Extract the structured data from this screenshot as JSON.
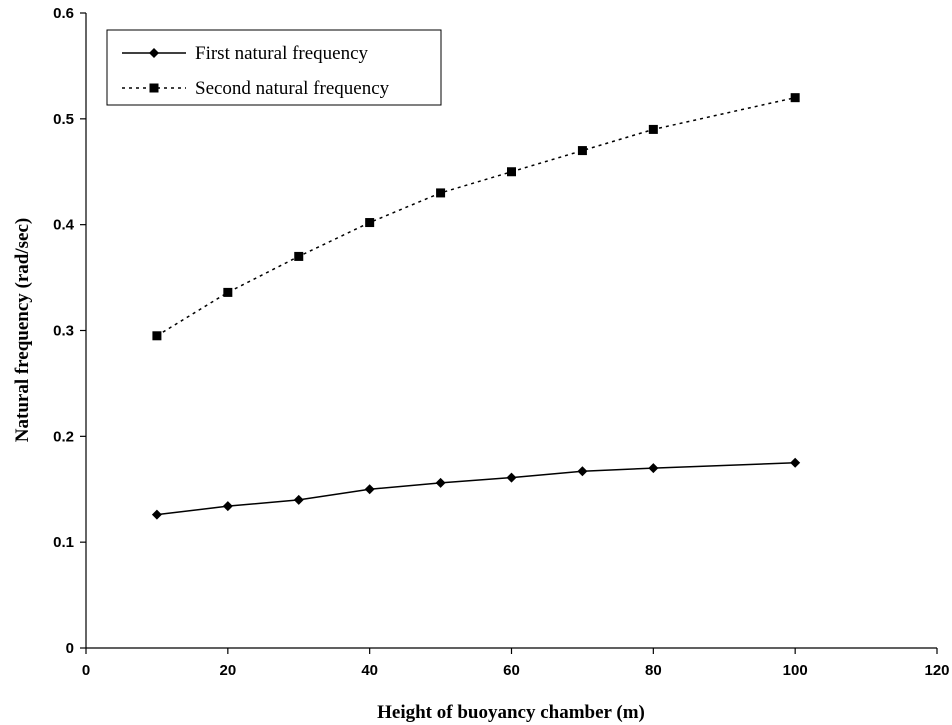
{
  "chart_data": {
    "type": "line",
    "title": "",
    "xlabel": "Height of buoyancy chamber (m)",
    "ylabel": "Natural frequency (rad/sec)",
    "xlim": [
      0,
      120
    ],
    "ylim": [
      0,
      0.6
    ],
    "xticks": [
      "0",
      "20",
      "40",
      "60",
      "80",
      "100",
      "120"
    ],
    "yticks": [
      "0",
      "0.1",
      "0.2",
      "0.3",
      "0.4",
      "0.5",
      "0.6"
    ],
    "grid": false,
    "legend_position": "top-left",
    "series": [
      {
        "name": "First natural frequency",
        "marker": "diamond",
        "line_style": "solid",
        "x": [
          10,
          20,
          30,
          40,
          50,
          60,
          70,
          80,
          100
        ],
        "y": [
          0.126,
          0.134,
          0.14,
          0.15,
          0.156,
          0.161,
          0.167,
          0.17,
          0.175
        ]
      },
      {
        "name": "Second natural frequency",
        "marker": "square",
        "line_style": "dotted",
        "x": [
          10,
          20,
          30,
          40,
          50,
          60,
          70,
          80,
          100
        ],
        "y": [
          0.295,
          0.336,
          0.37,
          0.402,
          0.43,
          0.45,
          0.47,
          0.49,
          0.52
        ]
      }
    ]
  }
}
